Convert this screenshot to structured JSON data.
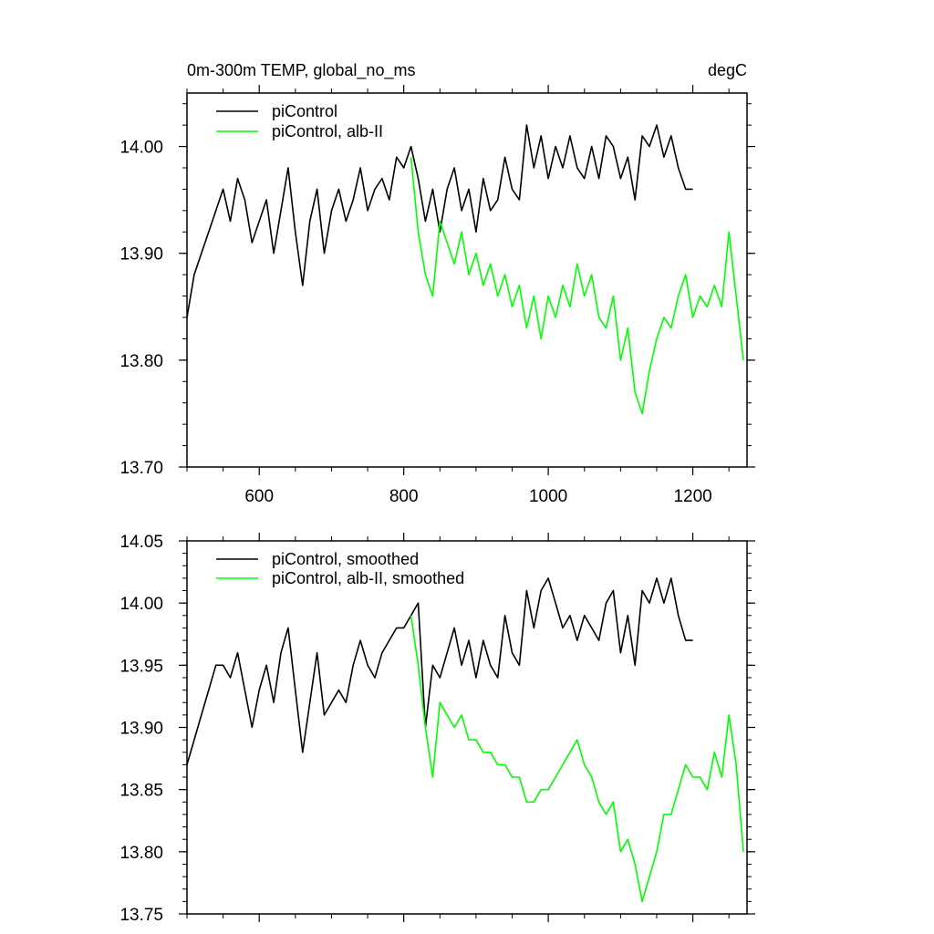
{
  "chart_data": [
    {
      "type": "line",
      "title": "0m-300m TEMP, global_no_ms",
      "units": "degC",
      "xlim": [
        500,
        1275
      ],
      "ylim": [
        13.7,
        14.05
      ],
      "x_ticks": [
        600,
        800,
        1000,
        1200
      ],
      "x_tick_labels": [
        "600",
        "800",
        "1000",
        "1200"
      ],
      "y_ticks": [
        13.7,
        13.8,
        13.9,
        14.0
      ],
      "y_tick_labels": [
        "13.70",
        "13.80",
        "13.90",
        "14.00"
      ],
      "legend": [
        "piControl",
        "piControl, alb-II"
      ],
      "series": [
        {
          "name": "piControl",
          "color": "#000000",
          "x": [
            500,
            510,
            520,
            530,
            540,
            550,
            560,
            570,
            580,
            590,
            600,
            610,
            620,
            630,
            640,
            650,
            660,
            670,
            680,
            690,
            700,
            710,
            720,
            730,
            740,
            750,
            760,
            770,
            780,
            790,
            800,
            810,
            820,
            830,
            840,
            850,
            860,
            870,
            880,
            890,
            900,
            910,
            920,
            930,
            940,
            950,
            960,
            970,
            980,
            990,
            1000,
            1010,
            1020,
            1030,
            1040,
            1050,
            1060,
            1070,
            1080,
            1090,
            1100,
            1110,
            1120,
            1130,
            1140,
            1150,
            1160,
            1170,
            1180,
            1190,
            1200
          ],
          "values": [
            13.84,
            13.88,
            13.9,
            13.92,
            13.94,
            13.96,
            13.93,
            13.97,
            13.95,
            13.91,
            13.93,
            13.95,
            13.9,
            13.94,
            13.98,
            13.92,
            13.87,
            13.93,
            13.96,
            13.9,
            13.94,
            13.96,
            13.93,
            13.95,
            13.98,
            13.94,
            13.96,
            13.97,
            13.95,
            13.99,
            13.98,
            14.0,
            13.97,
            13.93,
            13.96,
            13.92,
            13.96,
            13.98,
            13.94,
            13.96,
            13.92,
            13.97,
            13.94,
            13.95,
            13.99,
            13.96,
            13.95,
            14.02,
            13.98,
            14.01,
            13.97,
            14.0,
            13.98,
            14.01,
            13.98,
            13.97,
            14.0,
            13.97,
            14.01,
            14.0,
            13.97,
            13.99,
            13.95,
            14.01,
            14.0,
            14.02,
            13.99,
            14.01,
            13.98,
            13.96,
            13.96
          ]
        },
        {
          "name": "piControl, alb-II",
          "color": "#00ff00",
          "x": [
            810,
            820,
            830,
            840,
            850,
            860,
            870,
            880,
            890,
            900,
            910,
            920,
            930,
            940,
            950,
            960,
            970,
            980,
            990,
            1000,
            1010,
            1020,
            1030,
            1040,
            1050,
            1060,
            1070,
            1080,
            1090,
            1100,
            1110,
            1120,
            1130,
            1140,
            1150,
            1160,
            1170,
            1180,
            1190,
            1200,
            1210,
            1220,
            1230,
            1240,
            1250,
            1260,
            1270
          ],
          "values": [
            13.99,
            13.92,
            13.88,
            13.86,
            13.93,
            13.91,
            13.89,
            13.92,
            13.88,
            13.9,
            13.87,
            13.89,
            13.86,
            13.88,
            13.85,
            13.87,
            13.83,
            13.86,
            13.82,
            13.86,
            13.84,
            13.87,
            13.85,
            13.89,
            13.86,
            13.88,
            13.84,
            13.83,
            13.86,
            13.8,
            13.83,
            13.77,
            13.75,
            13.79,
            13.82,
            13.84,
            13.83,
            13.86,
            13.88,
            13.84,
            13.86,
            13.85,
            13.87,
            13.85,
            13.92,
            13.86,
            13.8
          ]
        }
      ]
    },
    {
      "type": "line",
      "title": "",
      "units": "",
      "xlim": [
        500,
        1275
      ],
      "ylim": [
        13.75,
        14.05
      ],
      "x_ticks": [
        600,
        800,
        1000,
        1200
      ],
      "x_tick_labels": [],
      "y_ticks": [
        13.75,
        13.8,
        13.85,
        13.9,
        13.95,
        14.0,
        14.05
      ],
      "y_tick_labels": [
        "13.75",
        "13.80",
        "13.85",
        "13.90",
        "13.95",
        "14.00",
        "14.05"
      ],
      "legend": [
        "piControl, smoothed",
        "piControl, alb-II, smoothed"
      ],
      "series": [
        {
          "name": "piControl, smoothed",
          "color": "#000000",
          "x": [
            500,
            510,
            520,
            530,
            540,
            550,
            560,
            570,
            580,
            590,
            600,
            610,
            620,
            630,
            640,
            650,
            660,
            670,
            680,
            690,
            700,
            710,
            720,
            730,
            740,
            750,
            760,
            770,
            780,
            790,
            800,
            810,
            820,
            830,
            840,
            850,
            860,
            870,
            880,
            890,
            900,
            910,
            920,
            930,
            940,
            950,
            960,
            970,
            980,
            990,
            1000,
            1010,
            1020,
            1030,
            1040,
            1050,
            1060,
            1070,
            1080,
            1090,
            1100,
            1110,
            1120,
            1130,
            1140,
            1150,
            1160,
            1170,
            1180,
            1190,
            1200
          ],
          "values": [
            13.87,
            13.89,
            13.91,
            13.93,
            13.95,
            13.95,
            13.94,
            13.96,
            13.93,
            13.9,
            13.93,
            13.95,
            13.92,
            13.96,
            13.98,
            13.93,
            13.88,
            13.92,
            13.96,
            13.91,
            13.92,
            13.93,
            13.92,
            13.95,
            13.97,
            13.95,
            13.94,
            13.96,
            13.97,
            13.98,
            13.98,
            13.99,
            14.0,
            13.9,
            13.95,
            13.94,
            13.96,
            13.98,
            13.95,
            13.97,
            13.94,
            13.97,
            13.95,
            13.94,
            13.99,
            13.96,
            13.95,
            14.01,
            13.98,
            14.01,
            14.02,
            14.0,
            13.98,
            13.99,
            13.97,
            13.99,
            13.98,
            13.97,
            14.0,
            14.01,
            13.96,
            13.99,
            13.95,
            14.01,
            14.0,
            14.02,
            14.0,
            14.02,
            13.99,
            13.97,
            13.97
          ]
        },
        {
          "name": "piControl, alb-II, smoothed",
          "color": "#00ff00",
          "x": [
            810,
            820,
            830,
            840,
            850,
            860,
            870,
            880,
            890,
            900,
            910,
            920,
            930,
            940,
            950,
            960,
            970,
            980,
            990,
            1000,
            1010,
            1020,
            1030,
            1040,
            1050,
            1060,
            1070,
            1080,
            1090,
            1100,
            1110,
            1120,
            1130,
            1140,
            1150,
            1160,
            1170,
            1180,
            1190,
            1200,
            1210,
            1220,
            1230,
            1240,
            1250,
            1260,
            1270
          ],
          "values": [
            13.99,
            13.95,
            13.9,
            13.86,
            13.92,
            13.91,
            13.9,
            13.91,
            13.89,
            13.89,
            13.88,
            13.88,
            13.87,
            13.87,
            13.86,
            13.86,
            13.84,
            13.84,
            13.85,
            13.85,
            13.86,
            13.87,
            13.88,
            13.89,
            13.87,
            13.86,
            13.84,
            13.83,
            13.84,
            13.8,
            13.81,
            13.79,
            13.76,
            13.78,
            13.8,
            13.83,
            13.83,
            13.85,
            13.87,
            13.86,
            13.86,
            13.85,
            13.88,
            13.86,
            13.91,
            13.87,
            13.8
          ]
        }
      ]
    }
  ]
}
